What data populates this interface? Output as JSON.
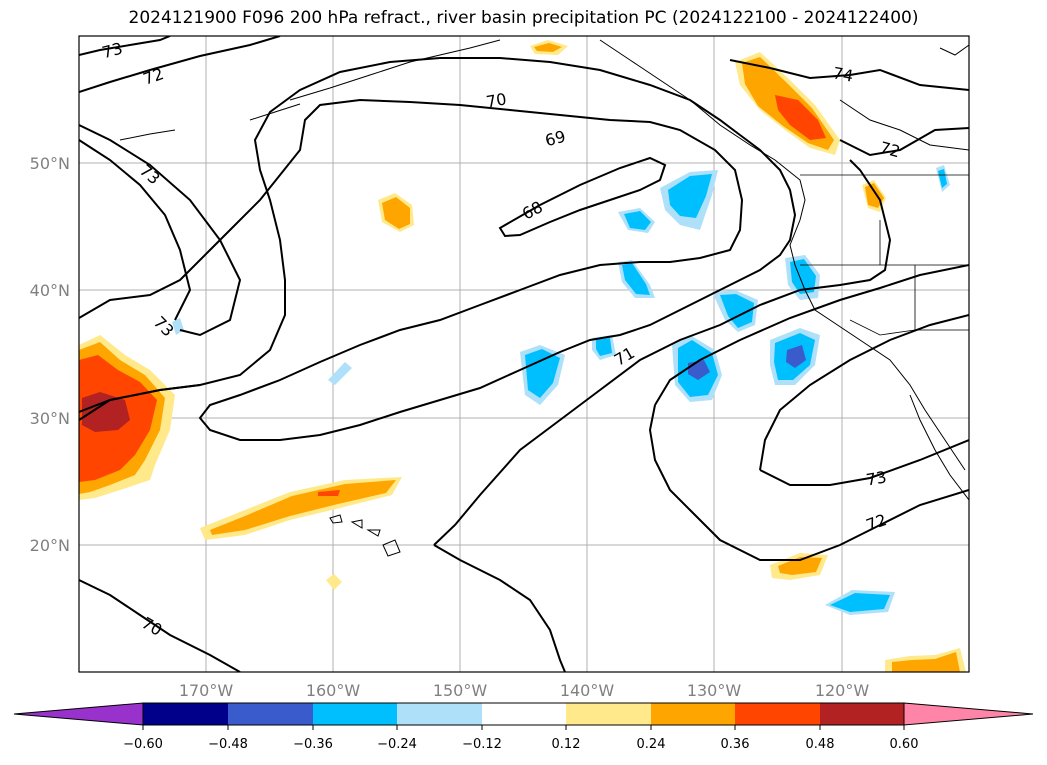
{
  "title": "2024121900 F096 200 hPa refract., river basin precipitation PC (2024122100 - 2024122400)",
  "lat_labels": [
    "50°N",
    "40°N",
    "30°N",
    "20°N"
  ],
  "lon_labels": [
    "170°W",
    "160°W",
    "150°W",
    "140°W",
    "130°W",
    "120°W"
  ],
  "contour_labels": [
    "73",
    "72",
    "70",
    "69",
    "68",
    "74",
    "73",
    "72",
    "73",
    "71",
    "73",
    "72",
    "70"
  ],
  "colorbar": {
    "ticks": [
      "−0.60",
      "−0.48",
      "−0.36",
      "−0.24",
      "−0.12",
      "0.12",
      "0.24",
      "0.36",
      "0.48",
      "0.60"
    ],
    "colors": [
      "#9932cc",
      "#00008b",
      "#3a5bcc",
      "#00bfff",
      "#aee1f9",
      "#ffffff",
      "#ffe98a",
      "#ffa500",
      "#ff4500",
      "#b22222",
      "#ff85a8"
    ]
  },
  "map_extent": {
    "lon_min": -180,
    "lon_max": -110,
    "lat_min": 10,
    "lat_max": 60
  }
}
